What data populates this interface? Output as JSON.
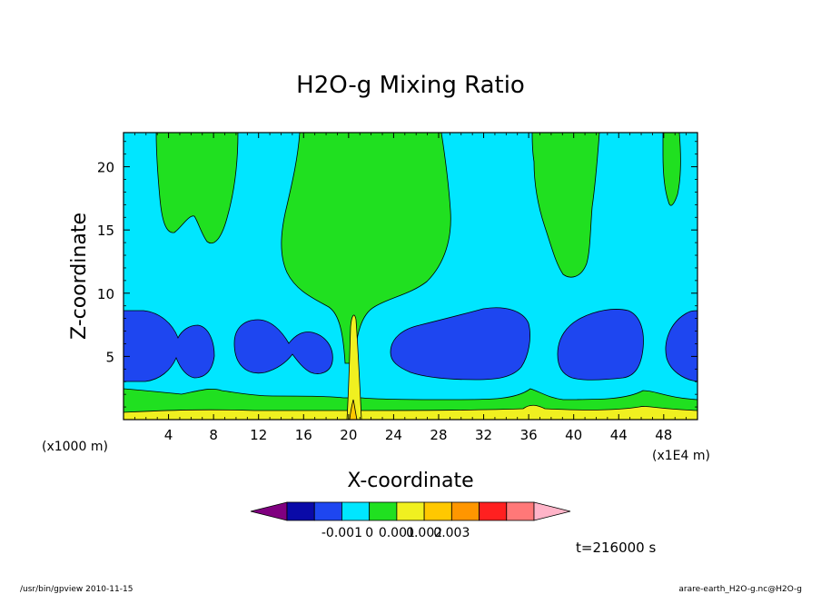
{
  "chart_data": {
    "type": "contour",
    "title": "H2O-g Mixing Ratio",
    "xlabel": "X-coordinate",
    "ylabel": "Z-coordinate",
    "x_unit_label": "(x1E4 m)",
    "y_unit_label": "(x1000 m)",
    "x_ticks": [
      "4",
      "8",
      "12",
      "16",
      "20",
      "24",
      "28",
      "32",
      "36",
      "40",
      "44",
      "48"
    ],
    "x_tick_values": [
      4,
      8,
      12,
      16,
      20,
      24,
      28,
      32,
      36,
      40,
      44,
      48
    ],
    "y_ticks": [
      "5",
      "10",
      "15",
      "20"
    ],
    "y_tick_values": [
      5,
      10,
      15,
      20
    ],
    "xlim": [
      0,
      51
    ],
    "ylim": [
      0,
      22.7
    ],
    "colorbar": {
      "colors": [
        "#800080",
        "#0a0aa8",
        "#1e46f0",
        "#00e6ff",
        "#20e020",
        "#f0f020",
        "#ffc800",
        "#ff9600",
        "#ff2020",
        "#ff7878",
        "#ffb4c8"
      ],
      "labels": [
        "-0.001",
        "0",
        "0.001",
        "0.002",
        "0.003"
      ],
      "label_positions": [
        2,
        3,
        4,
        5,
        6
      ]
    },
    "time_label": "t=216000 s"
  },
  "footer": {
    "left": "/usr/bin/gpview  2010-11-15",
    "right": "arare-earth_H2O-g.nc@H2O-g"
  }
}
